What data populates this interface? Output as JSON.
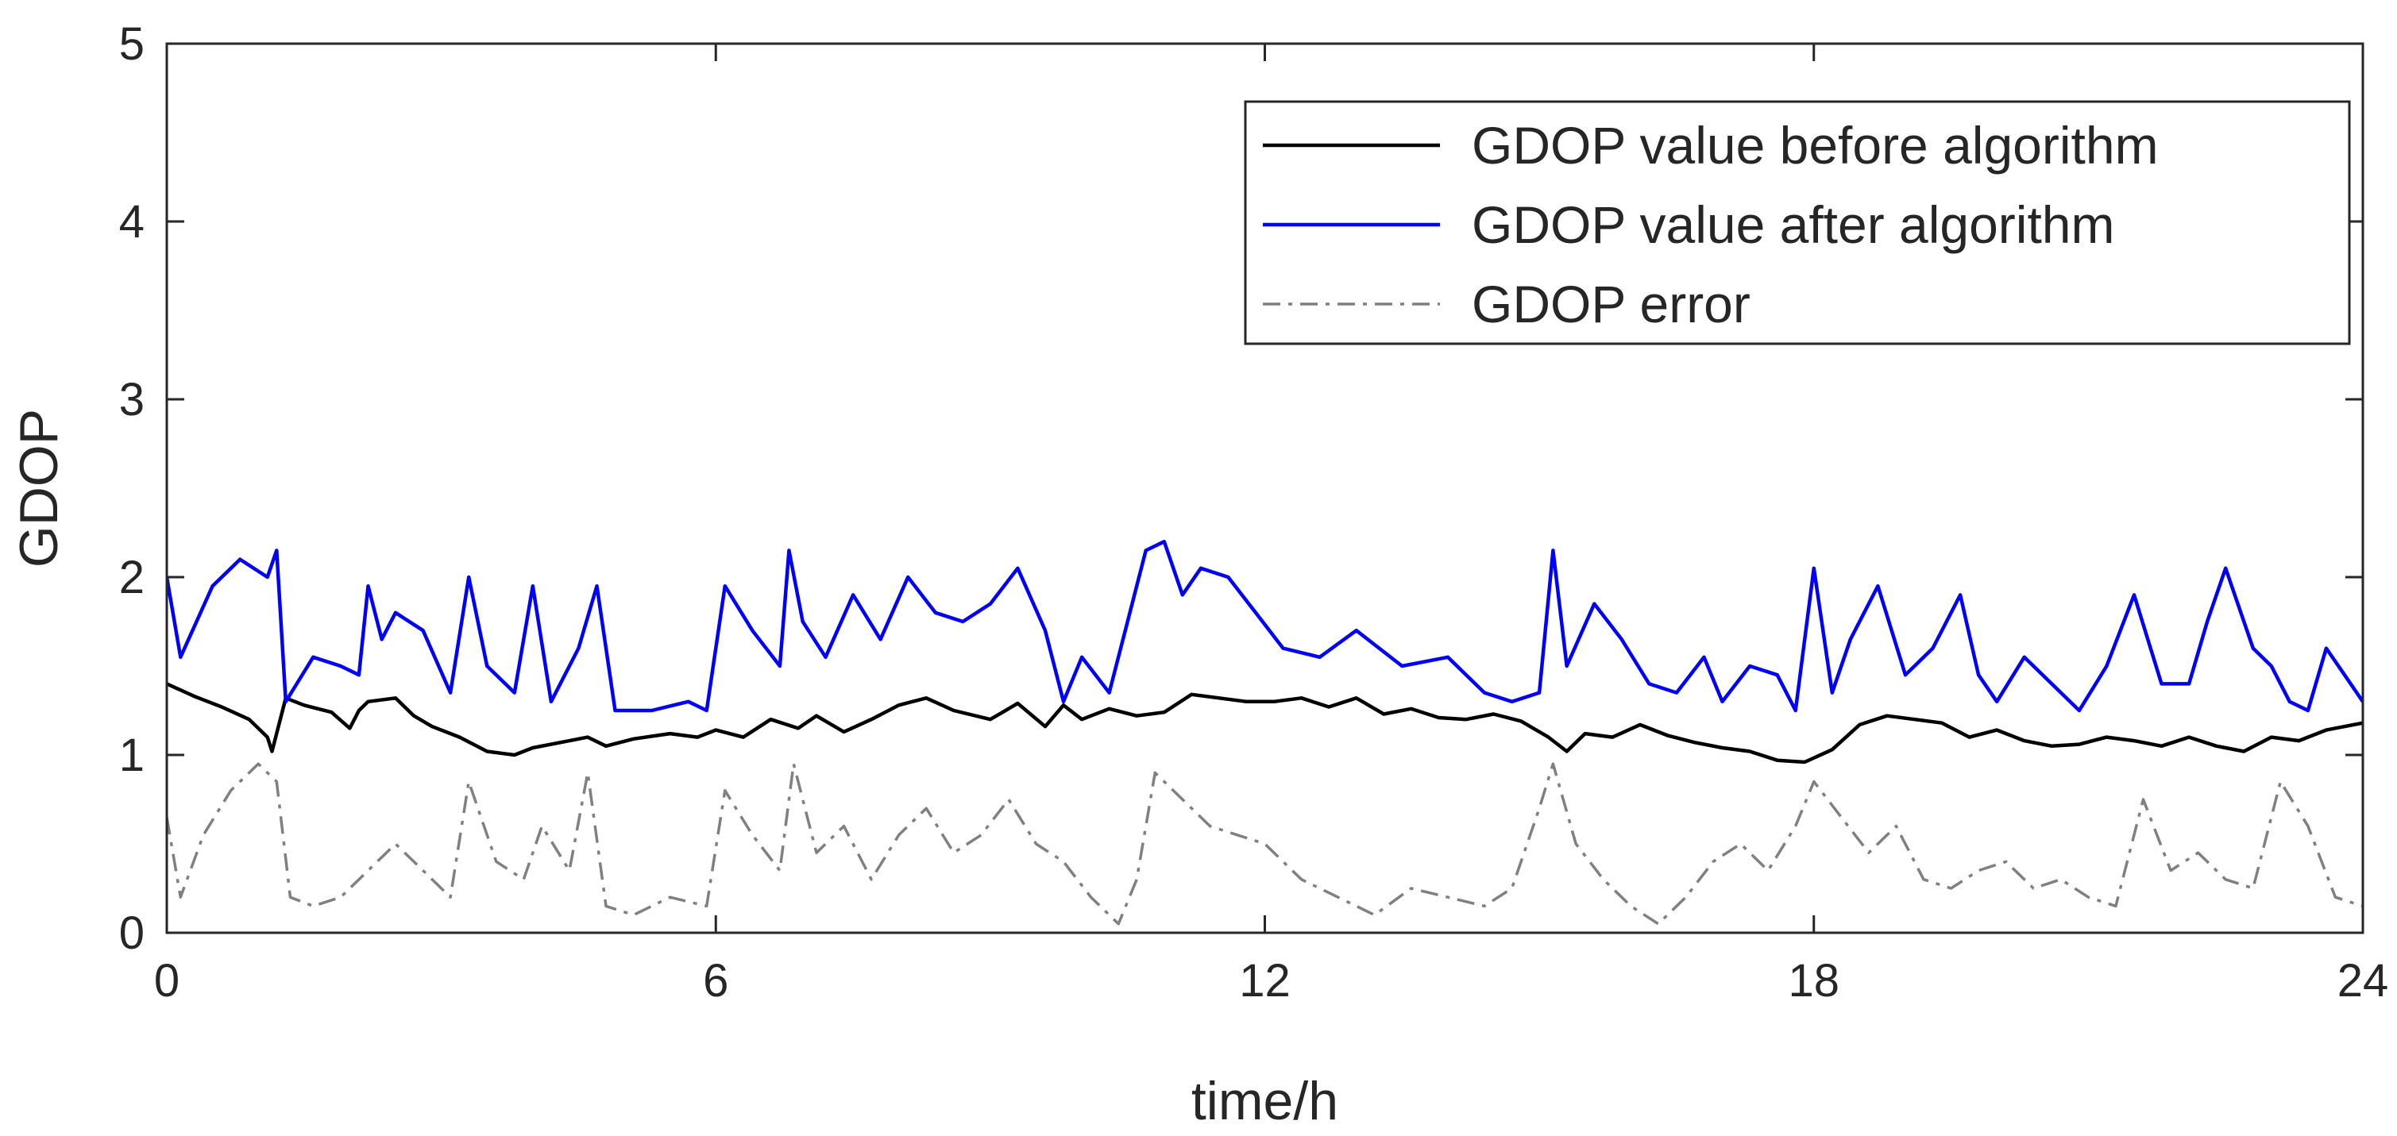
{
  "chart_data": {
    "type": "line",
    "title": "",
    "xlabel": "time/h",
    "ylabel": "GDOP",
    "xlim": [
      0,
      24
    ],
    "ylim": [
      0,
      5
    ],
    "xticks": [
      0,
      6,
      12,
      18,
      24
    ],
    "yticks": [
      0,
      1,
      2,
      3,
      4,
      5
    ],
    "xtick_labels": [
      "0",
      "6",
      "12",
      "18",
      "24"
    ],
    "ytick_labels": [
      "0",
      "1",
      "2",
      "3",
      "4",
      "5"
    ],
    "grid": false,
    "legend_position": "top-right",
    "series": [
      {
        "name": "GDOP value before algorithm",
        "color": "#000000",
        "style": "solid",
        "x": [
          0,
          0.3,
          0.6,
          0.9,
          1.1,
          1.15,
          1.3,
          1.5,
          1.8,
          2.0,
          2.1,
          2.2,
          2.5,
          2.7,
          2.9,
          3.2,
          3.5,
          3.8,
          4.0,
          4.3,
          4.6,
          4.8,
          5.1,
          5.5,
          5.8,
          6.0,
          6.3,
          6.6,
          6.9,
          7.1,
          7.4,
          7.7,
          8.0,
          8.3,
          8.6,
          9.0,
          9.3,
          9.6,
          9.8,
          10.0,
          10.3,
          10.6,
          10.9,
          11.2,
          11.5,
          11.8,
          12.1,
          12.4,
          12.7,
          13.0,
          13.3,
          13.6,
          13.9,
          14.2,
          14.5,
          14.8,
          15.1,
          15.3,
          15.5,
          15.8,
          16.1,
          16.4,
          16.7,
          17.0,
          17.3,
          17.6,
          17.9,
          18.2,
          18.5,
          18.8,
          19.1,
          19.4,
          19.7,
          20.0,
          20.3,
          20.6,
          20.9,
          21.2,
          21.5,
          21.8,
          22.1,
          22.4,
          22.7,
          23.0,
          23.3,
          23.6,
          24.0
        ],
        "values": [
          1.4,
          1.33,
          1.27,
          1.2,
          1.1,
          1.02,
          1.32,
          1.28,
          1.24,
          1.15,
          1.25,
          1.3,
          1.32,
          1.22,
          1.16,
          1.1,
          1.02,
          1.0,
          1.04,
          1.07,
          1.1,
          1.05,
          1.09,
          1.12,
          1.1,
          1.14,
          1.1,
          1.2,
          1.15,
          1.22,
          1.13,
          1.2,
          1.28,
          1.32,
          1.25,
          1.2,
          1.29,
          1.16,
          1.28,
          1.2,
          1.26,
          1.22,
          1.24,
          1.34,
          1.32,
          1.3,
          1.3,
          1.32,
          1.27,
          1.32,
          1.23,
          1.26,
          1.21,
          1.2,
          1.23,
          1.19,
          1.1,
          1.02,
          1.12,
          1.1,
          1.17,
          1.11,
          1.07,
          1.04,
          1.02,
          0.97,
          0.96,
          1.03,
          1.17,
          1.22,
          1.2,
          1.18,
          1.1,
          1.14,
          1.08,
          1.05,
          1.06,
          1.1,
          1.08,
          1.05,
          1.1,
          1.05,
          1.02,
          1.1,
          1.08,
          1.14,
          1.18
        ]
      },
      {
        "name": "GDOP value after algorithm",
        "color": "#0000ff",
        "style": "solid",
        "x": [
          0,
          0.15,
          0.5,
          0.8,
          1.1,
          1.2,
          1.3,
          1.6,
          1.9,
          2.1,
          2.2,
          2.35,
          2.5,
          2.8,
          3.1,
          3.3,
          3.5,
          3.8,
          4.0,
          4.2,
          4.5,
          4.7,
          4.9,
          5.3,
          5.7,
          5.9,
          6.1,
          6.4,
          6.7,
          6.8,
          6.95,
          7.2,
          7.5,
          7.8,
          8.1,
          8.4,
          8.7,
          9.0,
          9.3,
          9.6,
          9.8,
          10.0,
          10.3,
          10.5,
          10.7,
          10.9,
          11.1,
          11.3,
          11.6,
          11.9,
          12.2,
          12.6,
          13.0,
          13.5,
          14.0,
          14.4,
          14.7,
          15.0,
          15.15,
          15.3,
          15.6,
          15.9,
          16.2,
          16.5,
          16.8,
          17.0,
          17.3,
          17.6,
          17.8,
          18.0,
          18.2,
          18.4,
          18.7,
          19.0,
          19.3,
          19.6,
          19.8,
          20.0,
          20.3,
          20.6,
          20.9,
          21.2,
          21.5,
          21.8,
          22.1,
          22.3,
          22.5,
          22.8,
          23.0,
          23.2,
          23.4,
          23.6,
          23.8,
          24.0
        ],
        "values": [
          2.0,
          1.55,
          1.95,
          2.1,
          2.0,
          2.15,
          1.3,
          1.55,
          1.5,
          1.45,
          1.95,
          1.65,
          1.8,
          1.7,
          1.35,
          2.0,
          1.5,
          1.35,
          1.95,
          1.3,
          1.6,
          1.95,
          1.25,
          1.25,
          1.3,
          1.25,
          1.95,
          1.7,
          1.5,
          2.15,
          1.75,
          1.55,
          1.9,
          1.65,
          2.0,
          1.8,
          1.75,
          1.85,
          2.05,
          1.7,
          1.3,
          1.55,
          1.35,
          1.75,
          2.15,
          2.2,
          1.9,
          2.05,
          2.0,
          1.8,
          1.6,
          1.55,
          1.7,
          1.5,
          1.55,
          1.35,
          1.3,
          1.35,
          2.15,
          1.5,
          1.85,
          1.65,
          1.4,
          1.35,
          1.55,
          1.3,
          1.5,
          1.45,
          1.25,
          2.05,
          1.35,
          1.65,
          1.95,
          1.45,
          1.6,
          1.9,
          1.45,
          1.3,
          1.55,
          1.4,
          1.25,
          1.5,
          1.9,
          1.4,
          1.4,
          1.75,
          2.05,
          1.6,
          1.5,
          1.3,
          1.25,
          1.6,
          1.45,
          1.3
        ]
      },
      {
        "name": "GDOP error",
        "color": "#808080",
        "style": "dashdot",
        "x": [
          0,
          0.15,
          0.4,
          0.7,
          1.0,
          1.2,
          1.35,
          1.6,
          1.9,
          2.2,
          2.5,
          2.8,
          3.1,
          3.3,
          3.6,
          3.9,
          4.1,
          4.4,
          4.6,
          4.8,
          5.1,
          5.5,
          5.9,
          6.1,
          6.4,
          6.7,
          6.85,
          7.1,
          7.4,
          7.7,
          8.0,
          8.3,
          8.6,
          8.9,
          9.2,
          9.5,
          9.8,
          10.1,
          10.4,
          10.6,
          10.8,
          11.1,
          11.4,
          11.7,
          12.0,
          12.4,
          12.8,
          13.2,
          13.6,
          14.0,
          14.4,
          14.7,
          15.0,
          15.15,
          15.4,
          15.7,
          16.0,
          16.3,
          16.6,
          16.9,
          17.2,
          17.5,
          17.8,
          18.0,
          18.3,
          18.6,
          18.9,
          19.2,
          19.5,
          19.8,
          20.1,
          20.4,
          20.7,
          21.0,
          21.3,
          21.6,
          21.9,
          22.2,
          22.5,
          22.8,
          23.1,
          23.4,
          23.7,
          24.0
        ],
        "values": [
          0.65,
          0.2,
          0.55,
          0.8,
          0.95,
          0.85,
          0.2,
          0.15,
          0.2,
          0.35,
          0.5,
          0.35,
          0.2,
          0.85,
          0.4,
          0.3,
          0.6,
          0.35,
          0.9,
          0.15,
          0.1,
          0.2,
          0.15,
          0.8,
          0.55,
          0.35,
          0.95,
          0.45,
          0.6,
          0.3,
          0.55,
          0.7,
          0.45,
          0.55,
          0.75,
          0.5,
          0.4,
          0.2,
          0.05,
          0.3,
          0.9,
          0.75,
          0.6,
          0.55,
          0.5,
          0.3,
          0.2,
          0.1,
          0.25,
          0.2,
          0.15,
          0.25,
          0.7,
          0.95,
          0.5,
          0.3,
          0.15,
          0.05,
          0.2,
          0.4,
          0.5,
          0.35,
          0.6,
          0.85,
          0.65,
          0.45,
          0.6,
          0.3,
          0.25,
          0.35,
          0.4,
          0.25,
          0.3,
          0.2,
          0.15,
          0.75,
          0.35,
          0.45,
          0.3,
          0.25,
          0.85,
          0.6,
          0.2,
          0.15
        ]
      }
    ]
  }
}
